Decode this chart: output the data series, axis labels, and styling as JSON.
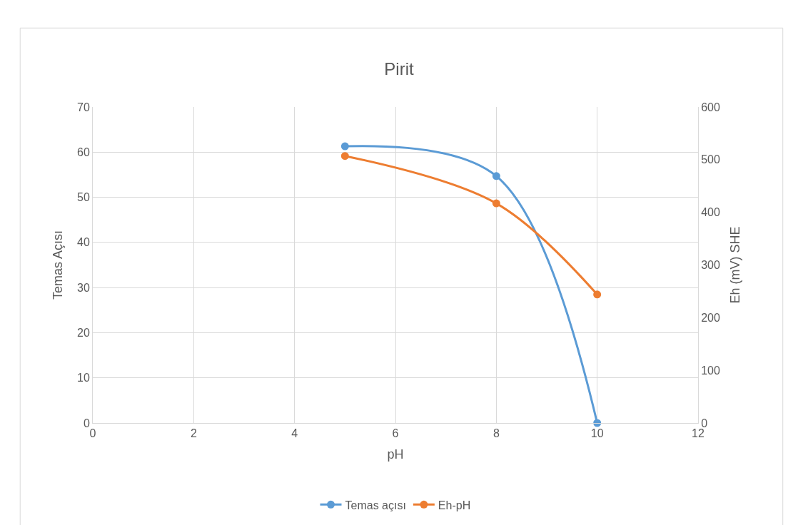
{
  "chart_data": {
    "type": "line",
    "title": "Pirit",
    "xlabel": "pH",
    "ylabel": "Temas Açısı",
    "y2label": "Eh (mV) SHE",
    "x": [
      5,
      8,
      10
    ],
    "series": [
      {
        "name": "Temas açısı",
        "color": "#5b9bd5",
        "values": [
          61.3,
          54.7,
          0
        ]
      },
      {
        "name": "Eh-pH",
        "color": "#ed7d31",
        "values": [
          507,
          417,
          244
        ],
        "axis": "y2"
      }
    ],
    "xlim": [
      0,
      12
    ],
    "xticks": [
      0,
      2,
      4,
      6,
      8,
      10,
      12
    ],
    "ylim": [
      0,
      70
    ],
    "yticks": [
      0,
      10,
      20,
      30,
      40,
      50,
      60,
      70
    ],
    "y2lim": [
      0,
      600
    ],
    "y2ticks": [
      0,
      100,
      200,
      300,
      400,
      500,
      600
    ],
    "grid": true,
    "legend": "bottom",
    "marker": "circle",
    "line_style": "solid"
  }
}
